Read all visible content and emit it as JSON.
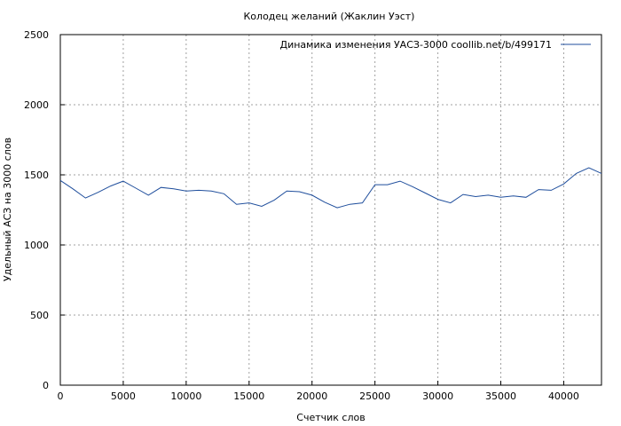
{
  "chart_data": {
    "type": "line",
    "title": "Колодец желаний (Жаклин Уэст)",
    "xlabel": "Счетчик слов",
    "ylabel": "Удельный АСЗ на 3000 слов",
    "xlim": [
      0,
      43000
    ],
    "ylim": [
      0,
      2500
    ],
    "xticks": [
      0,
      5000,
      10000,
      15000,
      20000,
      25000,
      30000,
      35000,
      40000
    ],
    "yticks": [
      0,
      500,
      1000,
      1500,
      2000,
      2500
    ],
    "grid": true,
    "legend_position": "top-right",
    "series": [
      {
        "name": "Динамика изменения УАСЗ-3000  coollib.net/b/499171",
        "color": "#1f4e9c",
        "x": [
          0,
          1000,
          2000,
          3000,
          4000,
          5000,
          6000,
          7000,
          8000,
          9000,
          10000,
          11000,
          12000,
          13000,
          14000,
          15000,
          16000,
          17000,
          18000,
          19000,
          20000,
          21000,
          22000,
          23000,
          24000,
          25000,
          26000,
          27000,
          28000,
          29000,
          30000,
          31000,
          32000,
          33000,
          34000,
          35000,
          36000,
          37000,
          38000,
          39000,
          40000,
          41000,
          42000,
          43000
        ],
        "y": [
          1460,
          1400,
          1335,
          1375,
          1420,
          1455,
          1405,
          1355,
          1410,
          1400,
          1385,
          1390,
          1385,
          1365,
          1290,
          1300,
          1275,
          1320,
          1385,
          1380,
          1355,
          1305,
          1265,
          1290,
          1300,
          1430,
          1430,
          1455,
          1415,
          1370,
          1325,
          1300,
          1360,
          1345,
          1355,
          1340,
          1350,
          1340,
          1395,
          1390,
          1435,
          1510,
          1550,
          1510
        ]
      }
    ]
  }
}
